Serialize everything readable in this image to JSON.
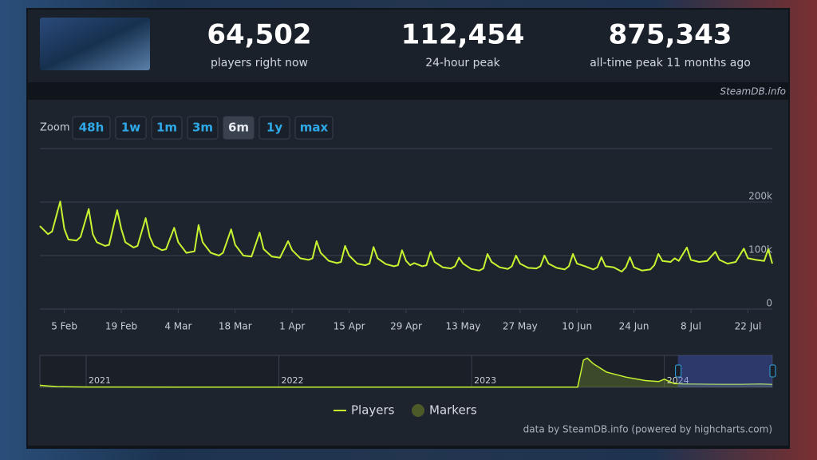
{
  "header": {
    "stats": [
      {
        "value": "64,502",
        "label": "players right now"
      },
      {
        "value": "112,454",
        "label": "24-hour peak"
      },
      {
        "value": "875,343",
        "label": "all-time peak 11 months ago"
      }
    ],
    "source": "SteamDB.info"
  },
  "zoom": {
    "label": "Zoom",
    "buttons": [
      "48h",
      "1w",
      "1m",
      "3m",
      "6m",
      "1y",
      "max"
    ],
    "active": 4
  },
  "chart_data": {
    "type": "line",
    "x": [
      30,
      32,
      33,
      35,
      36,
      37,
      39,
      40,
      42,
      43,
      44,
      46,
      47,
      49,
      50,
      51,
      53,
      54,
      56,
      57,
      58,
      60,
      61,
      63,
      64,
      66,
      68,
      69,
      70,
      72,
      74,
      75,
      77,
      78,
      80,
      82,
      84,
      85,
      87,
      89,
      91,
      92,
      94,
      96,
      97,
      98,
      99,
      101,
      103,
      104,
      105,
      106,
      108,
      110,
      111,
      112,
      113,
      115,
      117,
      118,
      119,
      120,
      121,
      122,
      124,
      125,
      126,
      127,
      129,
      131,
      132,
      133,
      134,
      136,
      138,
      139,
      140,
      141,
      143,
      145,
      146,
      147,
      148,
      150,
      152,
      153,
      154,
      155,
      157,
      159,
      160,
      161,
      162,
      164,
      166,
      167,
      168,
      169,
      171,
      173,
      174,
      175,
      176,
      178,
      180,
      181,
      182,
      183,
      185,
      186,
      187,
      189,
      190,
      192,
      194,
      196,
      197,
      199,
      201,
      203,
      204,
      206,
      208,
      209,
      210
    ],
    "series": [
      {
        "name": "Players",
        "color": "#c6f431",
        "values": [
          155000,
          140000,
          145000,
          201000,
          150000,
          130000,
          128000,
          135000,
          187000,
          140000,
          125000,
          118000,
          120000,
          185000,
          150000,
          125000,
          115000,
          118000,
          170000,
          135000,
          118000,
          110000,
          112000,
          152000,
          125000,
          105000,
          108000,
          157000,
          125000,
          105000,
          100000,
          105000,
          149000,
          120000,
          100000,
          98000,
          143000,
          112000,
          98000,
          96000,
          127000,
          110000,
          95000,
          92000,
          95000,
          127000,
          105000,
          90000,
          86000,
          88000,
          118000,
          100000,
          85000,
          82000,
          85000,
          116000,
          95000,
          84000,
          80000,
          82000,
          110000,
          90000,
          82000,
          86000,
          80000,
          82000,
          107000,
          88000,
          78000,
          76000,
          80000,
          96000,
          85000,
          75000,
          72000,
          76000,
          103000,
          88000,
          78000,
          75000,
          80000,
          100000,
          85000,
          77000,
          76000,
          80000,
          100000,
          85000,
          77000,
          74000,
          80000,
          103000,
          85000,
          80000,
          74000,
          78000,
          97000,
          80000,
          78000,
          70000,
          78000,
          97000,
          78000,
          72000,
          74000,
          82000,
          103000,
          90000,
          88000,
          95000,
          90000,
          115000,
          92000,
          88000,
          90000,
          107000,
          92000,
          85000,
          88000,
          113000,
          95000,
          92000,
          90000,
          112000,
          85000
        ]
      }
    ],
    "xlim": [
      30,
      210
    ],
    "xticks": [
      {
        "value": 36,
        "label": "5 Feb"
      },
      {
        "value": 50,
        "label": "19 Feb"
      },
      {
        "value": 64,
        "label": "4 Mar"
      },
      {
        "value": 78,
        "label": "18 Mar"
      },
      {
        "value": 92,
        "label": "1 Apr"
      },
      {
        "value": 106,
        "label": "15 Apr"
      },
      {
        "value": 120,
        "label": "29 Apr"
      },
      {
        "value": 134,
        "label": "13 May"
      },
      {
        "value": 148,
        "label": "27 May"
      },
      {
        "value": 162,
        "label": "10 Jun"
      },
      {
        "value": 176,
        "label": "24 Jun"
      },
      {
        "value": 190,
        "label": "8 Jul"
      },
      {
        "value": 204,
        "label": "22 Jul"
      }
    ],
    "ylim": [
      0,
      300000
    ],
    "yticks": [
      0,
      {
        "value": 100000,
        "label": "100k"
      },
      {
        "value": 200000,
        "label": "200k"
      }
    ],
    "grid": true,
    "legend": [
      {
        "name": "Players",
        "color": "#c6f431"
      },
      {
        "name": "Markers",
        "color": "#4c5a28"
      }
    ],
    "navigator": {
      "x": [
        2020.76,
        2020.8,
        2020.85,
        2021,
        2021.5,
        2022,
        2022.5,
        2023,
        2023.55,
        2023.58,
        2023.6,
        2023.63,
        2023.7,
        2023.8,
        2023.9,
        2023.97,
        2024.0,
        2024.05,
        2024.1,
        2024.2,
        2024.3,
        2024.4,
        2024.5,
        2024.56
      ],
      "values": [
        60000,
        40000,
        20000,
        10000,
        8000,
        6000,
        5000,
        5000,
        6000,
        800000,
        860000,
        700000,
        450000,
        300000,
        200000,
        170000,
        240000,
        110000,
        100000,
        95000,
        90000,
        88000,
        100000,
        85000
      ],
      "xlim": [
        2020.76,
        2024.56
      ],
      "ylim": [
        0,
        940000
      ],
      "xticks": [
        2021,
        2022,
        2023,
        2024
      ],
      "selection": [
        2024.07,
        2024.56
      ]
    },
    "credit": "data by SteamDB.info (powered by highcharts.com)"
  }
}
